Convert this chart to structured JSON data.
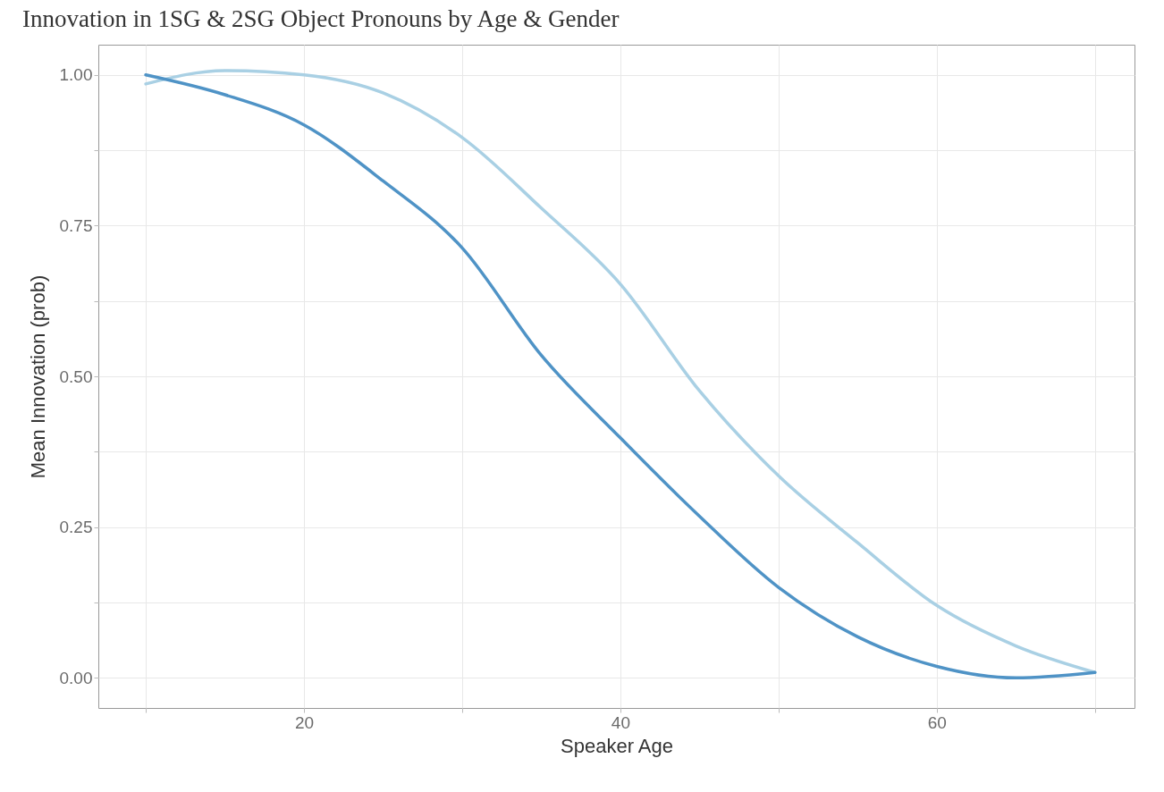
{
  "chart_data": {
    "type": "line",
    "title": "Innovation in 1SG & 2SG Object Pronouns by Age & Gender",
    "xlabel": "Speaker Age",
    "ylabel": "Mean Innovation (prob)",
    "x": [
      10,
      15,
      20,
      25,
      30,
      35,
      40,
      45,
      50,
      55,
      60,
      65,
      70
    ],
    "series": [
      {
        "color": "#a9d0e4",
        "values": [
          0.985,
          1.007,
          1.0,
          0.97,
          0.896,
          0.779,
          0.653,
          0.476,
          0.335,
          0.224,
          0.12,
          0.053,
          0.009
        ]
      },
      {
        "color": "#4f93c6",
        "values": [
          1.0,
          0.967,
          0.917,
          0.824,
          0.713,
          0.535,
          0.398,
          0.268,
          0.15,
          0.068,
          0.019,
          0.0,
          0.009
        ]
      }
    ],
    "xlim": [
      7,
      72.5
    ],
    "ylim": [
      -0.05,
      1.05
    ],
    "xticks": [
      {
        "value": 10,
        "label": null
      },
      20,
      {
        "value": 30,
        "label": null
      },
      40,
      {
        "value": 50,
        "label": null
      },
      60,
      {
        "value": 70,
        "label": null
      }
    ],
    "yticks": [
      {
        "value": 0,
        "label": "0.00"
      },
      {
        "value": 0.125,
        "label": null
      },
      {
        "value": 0.25,
        "label": "0.25"
      },
      {
        "value": 0.375,
        "label": null
      },
      {
        "value": 0.5,
        "label": "0.50"
      },
      {
        "value": 0.625,
        "label": null
      },
      {
        "value": 0.75,
        "label": "0.75"
      },
      {
        "value": 0.875,
        "label": null
      },
      {
        "value": 1,
        "label": "1.00"
      }
    ],
    "grid": true
  }
}
